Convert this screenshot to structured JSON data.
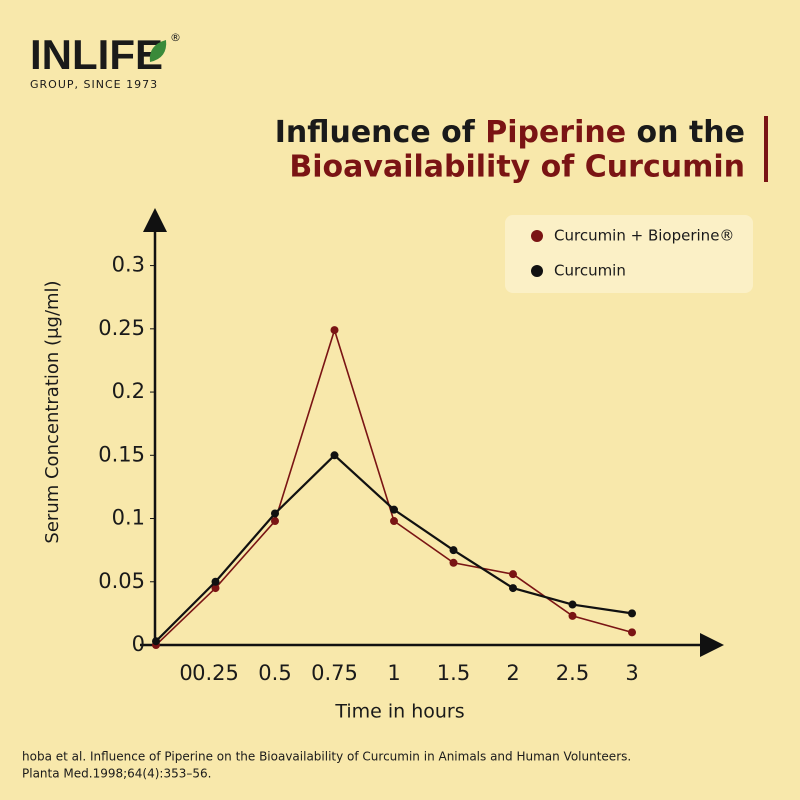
{
  "logo": {
    "brand": "INLIFE",
    "mark": "®",
    "tagline": "GROUP, SINCE 1973"
  },
  "chart_data": {
    "type": "line",
    "title": [
      [
        "Influence of ",
        "Piperine",
        " on the"
      ],
      [
        "Bioavailability of Curcumin"
      ]
    ],
    "y_label": "Serum Concentration (μg/ml)",
    "x_label": "Time in hours",
    "categories": [
      "0",
      "0.25",
      "0.5",
      "0.75",
      "1",
      "1.5",
      "2",
      "2.5",
      "3"
    ],
    "series": [
      {
        "name": "Curcumin + Bioperine®",
        "color": "#7a1414",
        "values": [
          0,
          0.045,
          0.098,
          0.249,
          0.098,
          0.065,
          0.056,
          0.023,
          0.01
        ]
      },
      {
        "name": "Curcumin",
        "color": "#111111",
        "values": [
          0.003,
          0.05,
          0.104,
          0.15,
          0.107,
          0.075,
          0.045,
          0.032,
          0.025
        ]
      }
    ],
    "ylim": [
      0,
      0.34
    ],
    "yticks": [
      0,
      0.05,
      0.1,
      0.15,
      0.2,
      0.25,
      0.3
    ],
    "legend": "top-right"
  },
  "source": [
    "hoba et al. Influence of Piperine on the Bioavailability of Curcumin in Animals and Human Volunteers.",
    "Planta Med.1998;64(4):353–56."
  ]
}
